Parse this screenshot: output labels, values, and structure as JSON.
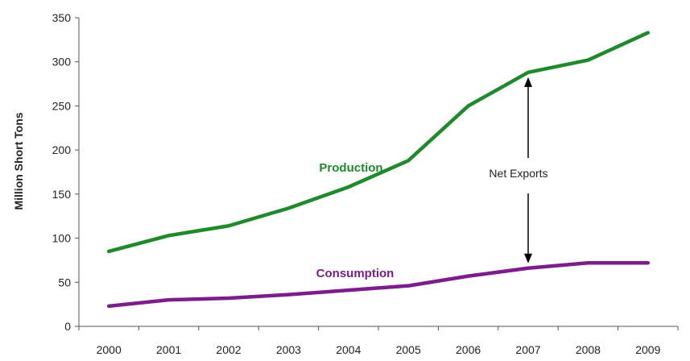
{
  "chart_data": {
    "type": "line",
    "categories": [
      "2000",
      "2001",
      "2002",
      "2003",
      "2004",
      "2005",
      "2006",
      "2007",
      "2008",
      "2009"
    ],
    "ylabel": "Million Short Tons",
    "xlabel": "",
    "ylim": [
      0,
      350
    ],
    "yticks": [
      "0",
      "50",
      "100",
      "150",
      "200",
      "250",
      "300",
      "350"
    ],
    "grid": false,
    "series": [
      {
        "name": "Production",
        "color": "#1e8a2a",
        "values": [
          85,
          103,
          114,
          134,
          158,
          188,
          250,
          288,
          302,
          333
        ]
      },
      {
        "name": "Consumption",
        "color": "#7b1e8c",
        "values": [
          23,
          30,
          32,
          36,
          41,
          46,
          57,
          66,
          72,
          72
        ]
      }
    ],
    "annotations": [
      {
        "text": "Net Exports",
        "category": "2007",
        "arrow_from": 288,
        "arrow_to": 66
      }
    ]
  }
}
